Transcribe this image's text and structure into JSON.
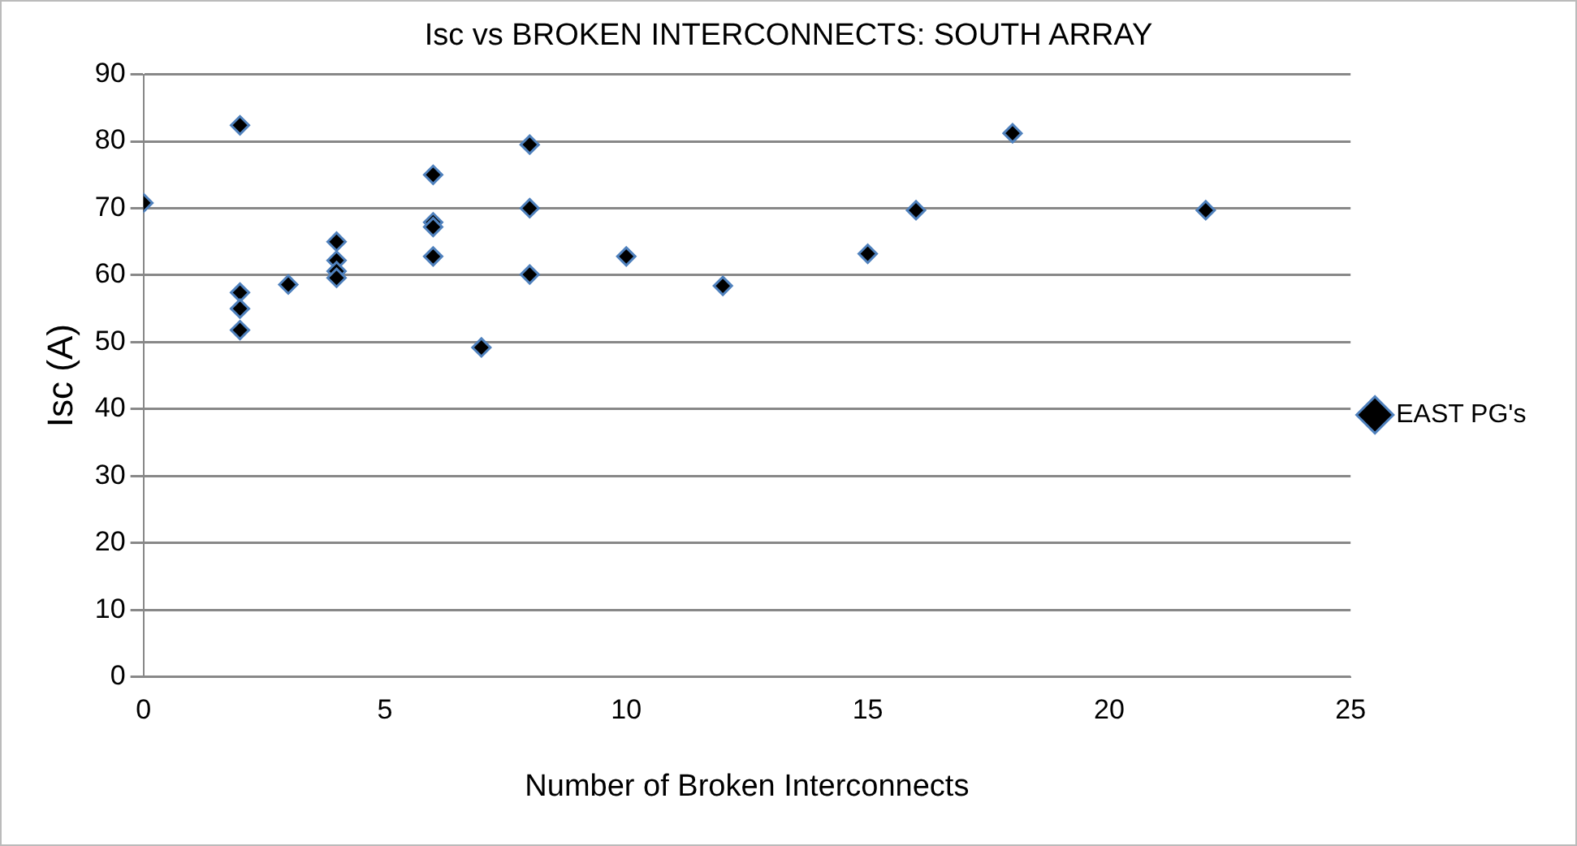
{
  "chart_data": {
    "type": "scatter",
    "title": "Isc vs BROKEN INTERCONNECTS: SOUTH ARRAY",
    "xlabel": "Number of Broken Interconnects",
    "ylabel": "Isc (A)",
    "series": [
      {
        "name": "EAST PG's",
        "color": "#000000",
        "x": [
          0,
          2,
          2,
          2,
          2,
          3,
          4,
          4,
          4,
          4,
          6,
          6,
          6,
          6,
          7,
          8,
          8,
          8,
          10,
          12,
          15,
          16,
          18,
          22
        ],
        "values": [
          70.8,
          82.4,
          57.4,
          55,
          51.8,
          58.6,
          65,
          62.2,
          60.6,
          59.6,
          75,
          67.9,
          67.2,
          62.8,
          49.2,
          79.5,
          70,
          60.1,
          62.8,
          58.4,
          63.2,
          69.7,
          81.2,
          69.7
        ]
      }
    ],
    "xlim": [
      0,
      25
    ],
    "xticks": [
      0,
      5,
      10,
      15,
      20,
      25
    ],
    "ylim": [
      0,
      90
    ],
    "yticks": [
      0,
      10,
      20,
      30,
      40,
      50,
      60,
      70,
      80,
      90
    ],
    "grid": "y",
    "legend": "right",
    "marker": "diamond"
  }
}
